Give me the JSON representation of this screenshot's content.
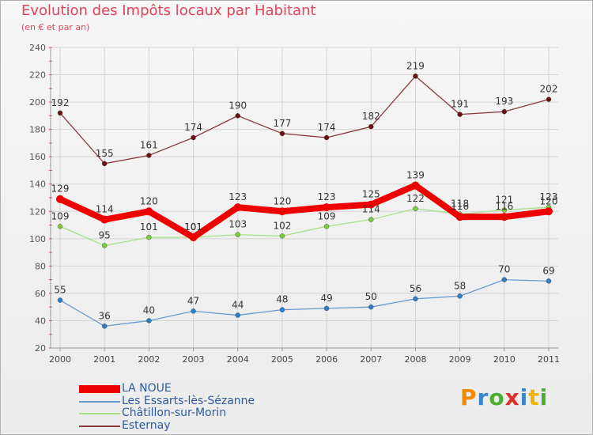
{
  "title": "Evolution des Impôts locaux par Habitant",
  "subtitle": "(en € et par an)",
  "logo_text": "Proxiti",
  "chart_data": {
    "type": "line",
    "title": "Evolution des Impôts locaux par Habitant",
    "subtitle": "(en € et par an)",
    "xlabel": "",
    "ylabel": "",
    "x": [
      "2000",
      "2001",
      "2002",
      "2003",
      "2004",
      "2005",
      "2006",
      "2007",
      "2008",
      "2009",
      "2010",
      "2011"
    ],
    "ylim": [
      20,
      240
    ],
    "yticks": [
      20,
      40,
      60,
      80,
      100,
      120,
      140,
      160,
      180,
      200,
      220,
      240
    ],
    "grid": true,
    "legend_position": "bottom-left",
    "series": [
      {
        "name": "LA NOUE",
        "color": "#ee0000",
        "marker": "#ee0000",
        "values": [
          129,
          114,
          120,
          101,
          123,
          120,
          123,
          125,
          139,
          116,
          116,
          120
        ]
      },
      {
        "name": "Les Essarts-lès-Sézanne",
        "color": "#6a9bd0",
        "marker": "#2f7fc8",
        "values": [
          55,
          36,
          40,
          47,
          44,
          48,
          49,
          50,
          56,
          58,
          70,
          69
        ]
      },
      {
        "name": "Châtillon-sur-Morin",
        "color": "#a8e08a",
        "marker": "#7ccd3a",
        "values": [
          109,
          95,
          101,
          101,
          103,
          102,
          109,
          114,
          122,
          118,
          121,
          123
        ]
      },
      {
        "name": "Esternay",
        "color": "#8b3a3f",
        "marker": "#6b1010",
        "values": [
          192,
          155,
          161,
          174,
          190,
          177,
          174,
          182,
          219,
          191,
          193,
          202
        ]
      }
    ]
  }
}
